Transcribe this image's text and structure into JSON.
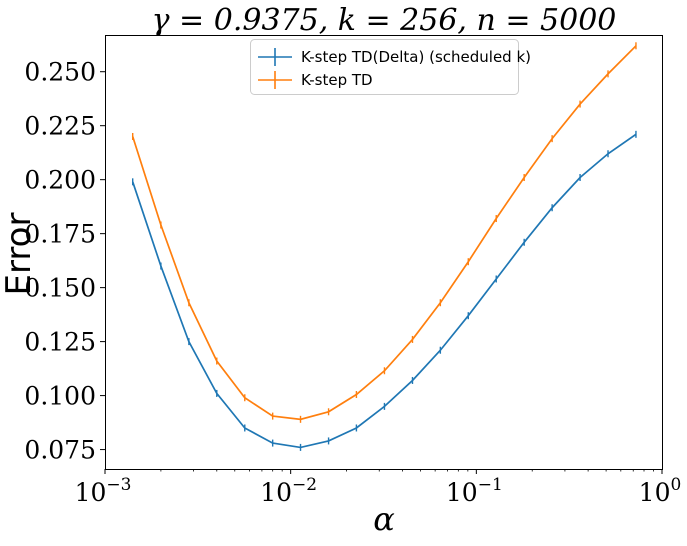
{
  "chart_data": {
    "type": "line",
    "title_parts": [
      "γ = 0.9375, ",
      "k = 256, ",
      "n = 5000"
    ],
    "xlabel": "α",
    "ylabel": "Error",
    "xscale": "log",
    "xlim": [
      0.001,
      1
    ],
    "ylim": [
      0.066,
      0.267
    ],
    "x_ticks": [
      {
        "value": 0.001,
        "base": "10",
        "exp": "−3"
      },
      {
        "value": 0.01,
        "base": "10",
        "exp": "−2"
      },
      {
        "value": 0.1,
        "base": "10",
        "exp": "−1"
      },
      {
        "value": 1,
        "base": "10",
        "exp": "0"
      }
    ],
    "y_ticks": [
      {
        "value": 0.075,
        "label": "0.075"
      },
      {
        "value": 0.1,
        "label": "0.100"
      },
      {
        "value": 0.125,
        "label": "0.125"
      },
      {
        "value": 0.15,
        "label": "0.150"
      },
      {
        "value": 0.175,
        "label": "0.175"
      },
      {
        "value": 0.2,
        "label": "0.200"
      },
      {
        "value": 0.225,
        "label": "0.225"
      },
      {
        "value": 0.25,
        "label": "0.250"
      }
    ],
    "grid": false,
    "legend_position": "top-center",
    "error_bars": true,
    "series": [
      {
        "name": "K-step TD(Delta) (scheduled k)",
        "color": "#1f77b4",
        "x": [
          0.00141,
          0.002,
          0.00283,
          0.004,
          0.00566,
          0.008,
          0.0113,
          0.016,
          0.0226,
          0.032,
          0.0453,
          0.064,
          0.0905,
          0.128,
          0.181,
          0.256,
          0.362,
          0.512,
          0.724
        ],
        "y": [
          0.199,
          0.16,
          0.125,
          0.101,
          0.085,
          0.078,
          0.076,
          0.079,
          0.085,
          0.095,
          0.107,
          0.121,
          0.137,
          0.154,
          0.171,
          0.187,
          0.201,
          0.212,
          0.221
        ]
      },
      {
        "name": "K-step TD",
        "color": "#ff7f0e",
        "x": [
          0.00141,
          0.002,
          0.00283,
          0.004,
          0.00566,
          0.008,
          0.0113,
          0.016,
          0.0226,
          0.032,
          0.0453,
          0.064,
          0.0905,
          0.128,
          0.181,
          0.256,
          0.362,
          0.512,
          0.724
        ],
        "y": [
          0.22,
          0.179,
          0.143,
          0.116,
          0.099,
          0.0905,
          0.089,
          0.0925,
          0.1005,
          0.1115,
          0.126,
          0.143,
          0.162,
          0.182,
          0.201,
          0.219,
          0.235,
          0.249,
          0.262
        ]
      }
    ]
  }
}
